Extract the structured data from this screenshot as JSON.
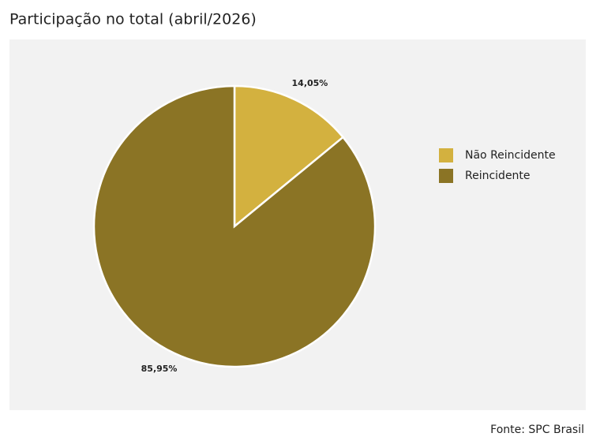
{
  "chart_data": {
    "type": "pie",
    "title": "Participação no total (abril/2026)",
    "categories": [
      "Não Reincidente",
      "Reincidente"
    ],
    "values": [
      14.05,
      85.95
    ],
    "value_labels": [
      "14,05%",
      "85,95%"
    ],
    "colors": [
      "#d3b13f",
      "#8b7425"
    ],
    "legend": "right",
    "source": "Fonte: SPC Brasil"
  }
}
